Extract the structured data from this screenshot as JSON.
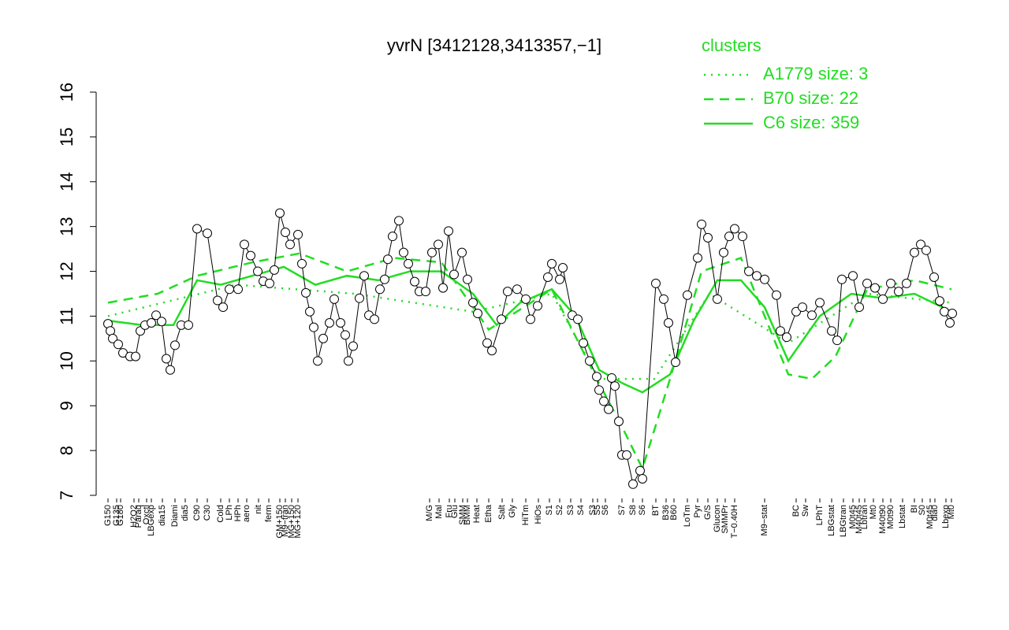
{
  "chart_data": {
    "type": "line",
    "title": "yvrN [3412128,3413357,−1]",
    "legend_title": "clusters",
    "legend_position": "top-right",
    "xlim": [
      0,
      1100
    ],
    "ylim": [
      7,
      16
    ],
    "yticks": [
      7,
      8,
      9,
      10,
      11,
      12,
      13,
      14,
      15,
      16
    ],
    "xticks": [
      {
        "value": 15,
        "label": "G150"
      },
      {
        "value": 26,
        "label": "G135"
      },
      {
        "value": 31,
        "label": "G180"
      },
      {
        "value": 48,
        "label": "H2O2"
      },
      {
        "value": 54,
        "label": "Paraq"
      },
      {
        "value": 64,
        "label": "Oxctl"
      },
      {
        "value": 70,
        "label": "LBGexp"
      },
      {
        "value": 84,
        "label": "dia15"
      },
      {
        "value": 100,
        "label": "Diami"
      },
      {
        "value": 113,
        "label": "dia5"
      },
      {
        "value": 128,
        "label": "C90"
      },
      {
        "value": 141,
        "label": "C30"
      },
      {
        "value": 158,
        "label": "Cold"
      },
      {
        "value": 169,
        "label": "LPh"
      },
      {
        "value": 180,
        "label": "HPh"
      },
      {
        "value": 191,
        "label": "aero"
      },
      {
        "value": 206,
        "label": "nit"
      },
      {
        "value": 219,
        "label": "ferm"
      },
      {
        "value": 233,
        "label": "GM+150"
      },
      {
        "value": 240,
        "label": "M9−tran"
      },
      {
        "value": 248,
        "label": "MG+150"
      },
      {
        "value": 256,
        "label": "MG+120"
      },
      {
        "value": 423,
        "label": "M/G"
      },
      {
        "value": 435,
        "label": "Mal"
      },
      {
        "value": 448,
        "label": "Fru"
      },
      {
        "value": 455,
        "label": "Glu"
      },
      {
        "value": 465,
        "label": "SMM"
      },
      {
        "value": 471,
        "label": "BMM"
      },
      {
        "value": 483,
        "label": "Heat"
      },
      {
        "value": 498,
        "label": "Etha"
      },
      {
        "value": 515,
        "label": "Salt"
      },
      {
        "value": 528,
        "label": "Gly"
      },
      {
        "value": 545,
        "label": "HiTm"
      },
      {
        "value": 561,
        "label": "HiOs"
      },
      {
        "value": 575,
        "label": "S1"
      },
      {
        "value": 588,
        "label": "S2"
      },
      {
        "value": 602,
        "label": "S3"
      },
      {
        "value": 615,
        "label": "S4"
      },
      {
        "value": 630,
        "label": "S3"
      },
      {
        "value": 636,
        "label": "S5"
      },
      {
        "value": 646,
        "label": "S6"
      },
      {
        "value": 667,
        "label": "S7"
      },
      {
        "value": 681,
        "label": "S8"
      },
      {
        "value": 693,
        "label": "S6"
      },
      {
        "value": 710,
        "label": "BT"
      },
      {
        "value": 723,
        "label": "B36"
      },
      {
        "value": 733,
        "label": "B60"
      },
      {
        "value": 750,
        "label": "LoTm"
      },
      {
        "value": 763,
        "label": "Pyr"
      },
      {
        "value": 776,
        "label": "G/S"
      },
      {
        "value": 788,
        "label": "Glucon"
      },
      {
        "value": 798,
        "label": "SMMPr"
      },
      {
        "value": 810,
        "label": "T−0.40H"
      },
      {
        "value": 848,
        "label": "M9−stat"
      },
      {
        "value": 888,
        "label": "BC"
      },
      {
        "value": 900,
        "label": "Sw"
      },
      {
        "value": 918,
        "label": "LPhT"
      },
      {
        "value": 933,
        "label": "LBGstat"
      },
      {
        "value": 948,
        "label": "LBGtran"
      },
      {
        "value": 960,
        "label": "M0t45"
      },
      {
        "value": 968,
        "label": "M40t45"
      },
      {
        "value": 975,
        "label": "Lbtran"
      },
      {
        "value": 986,
        "label": "Mt0"
      },
      {
        "value": 998,
        "label": "M40t90"
      },
      {
        "value": 1008,
        "label": "M0t90"
      },
      {
        "value": 1023,
        "label": "Lbstat"
      },
      {
        "value": 1038,
        "label": "BI"
      },
      {
        "value": 1048,
        "label": "S0"
      },
      {
        "value": 1058,
        "label": "M0t45"
      },
      {
        "value": 1064,
        "label": "dia0"
      },
      {
        "value": 1078,
        "label": "Lbexp"
      },
      {
        "value": 1085,
        "label": "Mt0"
      }
    ],
    "points": {
      "color": "#000000",
      "x": [
        15,
        18,
        21,
        28,
        34,
        43,
        50,
        56,
        62,
        70,
        76,
        83,
        89,
        94,
        100,
        108,
        117,
        128,
        141,
        154,
        161,
        169,
        180,
        188,
        196,
        205,
        212,
        220,
        226,
        233,
        240,
        246,
        256,
        261,
        266,
        271,
        276,
        281,
        288,
        296,
        302,
        310,
        316,
        320,
        326,
        334,
        340,
        346,
        353,
        360,
        366,
        370,
        376,
        384,
        390,
        396,
        404,
        410,
        418,
        426,
        434,
        440,
        447,
        454,
        464,
        471,
        478,
        484,
        496,
        502,
        514,
        522,
        534,
        545,
        551,
        560,
        573,
        578,
        588,
        592,
        604,
        611,
        618,
        626,
        635,
        638,
        644,
        650,
        654,
        658,
        663,
        667,
        673,
        681,
        690,
        693,
        710,
        720,
        726,
        735,
        750,
        763,
        768,
        776,
        788,
        796,
        803,
        810,
        820,
        828,
        838,
        848,
        863,
        868,
        876,
        888,
        896,
        908,
        918,
        933,
        940,
        946,
        960,
        968,
        978,
        988,
        998,
        1008,
        1018,
        1028,
        1038,
        1046,
        1053,
        1063,
        1070,
        1076,
        1083,
        1086
      ],
      "values": [
        10.83,
        10.67,
        10.5,
        10.37,
        10.18,
        10.1,
        10.1,
        10.67,
        10.8,
        10.85,
        11.02,
        10.88,
        10.05,
        9.8,
        10.35,
        10.8,
        10.8,
        12.95,
        12.85,
        11.35,
        11.2,
        11.6,
        11.6,
        12.6,
        12.35,
        12.0,
        11.78,
        11.73,
        12.03,
        13.3,
        12.87,
        12.6,
        12.82,
        12.17,
        11.52,
        11.1,
        10.75,
        10.0,
        10.5,
        10.85,
        11.38,
        10.85,
        10.58,
        10.0,
        10.33,
        11.4,
        11.9,
        11.02,
        10.93,
        11.6,
        11.82,
        12.27,
        12.78,
        13.13,
        12.42,
        12.17,
        11.77,
        11.55,
        11.55,
        12.42,
        12.6,
        11.63,
        12.9,
        11.93,
        12.42,
        11.82,
        11.3,
        11.06,
        10.4,
        10.23,
        10.93,
        11.55,
        11.6,
        11.38,
        10.93,
        11.23,
        11.87,
        12.17,
        11.82,
        12.08,
        11.02,
        10.93,
        10.4,
        10.0,
        9.65,
        9.35,
        9.1,
        8.92,
        9.62,
        9.44,
        8.65,
        7.9,
        7.9,
        7.25,
        7.55,
        7.37,
        11.73,
        11.38,
        10.85,
        9.97,
        11.47,
        12.3,
        13.05,
        12.75,
        11.38,
        12.42,
        12.78,
        12.95,
        12.78,
        12.0,
        11.9,
        11.82,
        11.47,
        10.67,
        10.53,
        11.1,
        11.2,
        11.02,
        11.3,
        10.67,
        10.46,
        11.82,
        11.9,
        11.2,
        11.73,
        11.63,
        11.38,
        11.73,
        11.55,
        11.73,
        12.42,
        12.6,
        12.47,
        11.87,
        11.34,
        11.1,
        10.85,
        11.06
      ]
    },
    "series": [
      {
        "name": "A1779 size: 3",
        "color": "#22dd22",
        "dash": "dotted",
        "x": [
          15,
          178,
          328,
          478,
          578,
          638,
          708,
          778,
          878,
          978,
          1085
        ],
        "values": [
          11.0,
          11.7,
          11.5,
          11.1,
          11.5,
          9.6,
          9.6,
          11.5,
          10.4,
          11.5,
          11.3
        ]
      },
      {
        "name": "B70 size: 22",
        "color": "#22dd22",
        "dash": "dashed",
        "x": [
          15,
          78,
          128,
          198,
          258,
          318,
          378,
          438,
          498,
          578,
          638,
          668,
          693,
          728,
          768,
          818,
          878,
          908,
          938,
          978,
          1038,
          1085
        ],
        "values": [
          11.3,
          11.5,
          11.9,
          12.2,
          12.4,
          12.0,
          12.3,
          12.2,
          10.7,
          11.6,
          9.5,
          8.5,
          7.6,
          9.6,
          12.0,
          12.3,
          9.7,
          9.6,
          10.1,
          11.6,
          11.8,
          11.6
        ]
      },
      {
        "name": "C6 size: 359",
        "color": "#22dd22",
        "dash": "solid",
        "x": [
          15,
          58,
          98,
          128,
          158,
          198,
          238,
          278,
          318,
          358,
          398,
          438,
          478,
          508,
          538,
          578,
          608,
          638,
          668,
          693,
          728,
          758,
          788,
          818,
          848,
          878,
          918,
          958,
          998,
          1038,
          1085
        ],
        "values": [
          10.9,
          10.8,
          10.8,
          11.8,
          11.7,
          11.9,
          12.1,
          11.7,
          11.9,
          11.8,
          12.0,
          12.0,
          11.5,
          10.8,
          11.3,
          11.6,
          11.0,
          9.8,
          9.5,
          9.3,
          9.7,
          10.9,
          11.8,
          11.8,
          11.2,
          10.0,
          11.0,
          11.5,
          11.4,
          11.5,
          11.1
        ]
      }
    ]
  }
}
